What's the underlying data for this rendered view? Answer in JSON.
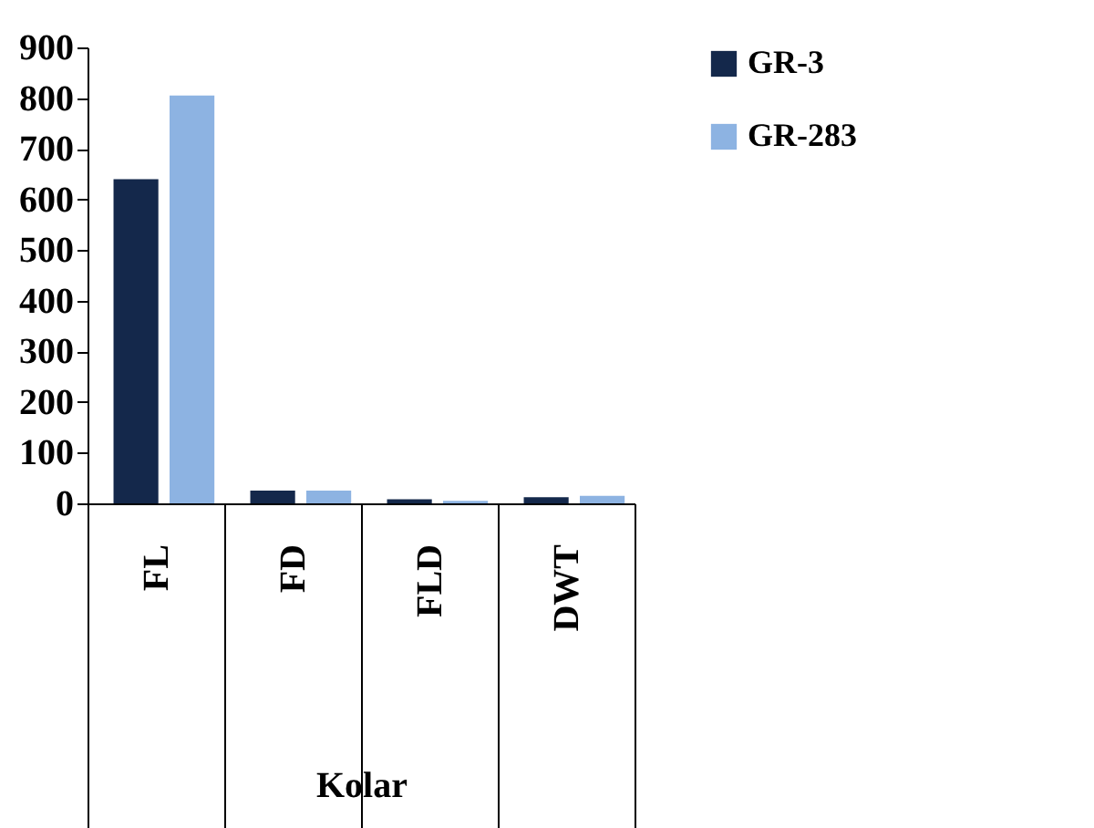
{
  "chart_data": {
    "type": "bar",
    "xlabel": "Kolar",
    "categories": [
      "FL",
      "FD",
      "FLD",
      "DWT"
    ],
    "series": [
      {
        "name": "GR-3",
        "color": "#14284b",
        "values": [
          640,
          25,
          8,
          12
        ]
      },
      {
        "name": "GR-283",
        "color": "#8db3e2",
        "values": [
          805,
          25,
          5,
          15
        ]
      }
    ],
    "ylim": [
      0,
      900
    ],
    "yticks": [
      0,
      100,
      200,
      300,
      400,
      500,
      600,
      700,
      800,
      900
    ],
    "grid": false,
    "legend": "right"
  }
}
